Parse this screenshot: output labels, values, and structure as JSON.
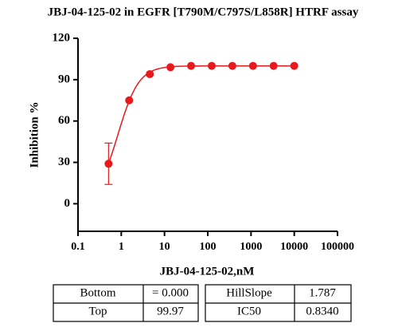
{
  "chart_data": {
    "type": "dose-response",
    "title": "JBJ-04-125-02 in EGFR [T790M/C797S/L858R] HTRF assay",
    "xlabel": "JBJ-04-125-02,nM",
    "ylabel": "Inhibition %",
    "xscale": "log",
    "xlim": [
      0.1,
      100000
    ],
    "xticks": [
      0.1,
      1,
      10,
      100,
      1000,
      10000,
      100000
    ],
    "ylim": [
      -20,
      120
    ],
    "yticks": [
      0,
      30,
      60,
      90,
      120
    ],
    "color": "#e8191c",
    "x": [
      0.508,
      1.524,
      4.572,
      13.72,
      41.15,
      123.5,
      370.4,
      1111,
      3333,
      10000
    ],
    "values": [
      29,
      75,
      94,
      99,
      100,
      100,
      100,
      100,
      100,
      100
    ],
    "errors": [
      15,
      null,
      null,
      null,
      null,
      null,
      null,
      null,
      null,
      null
    ],
    "fit": [
      {
        "name": "Bottom",
        "value": 0,
        "label": "= 0.000"
      },
      {
        "name": "Top",
        "value": 99.97
      },
      {
        "name": "HillSlope",
        "value": 1.787
      },
      {
        "name": "IC50",
        "value": 0.834,
        "label": "0.8340"
      }
    ]
  }
}
